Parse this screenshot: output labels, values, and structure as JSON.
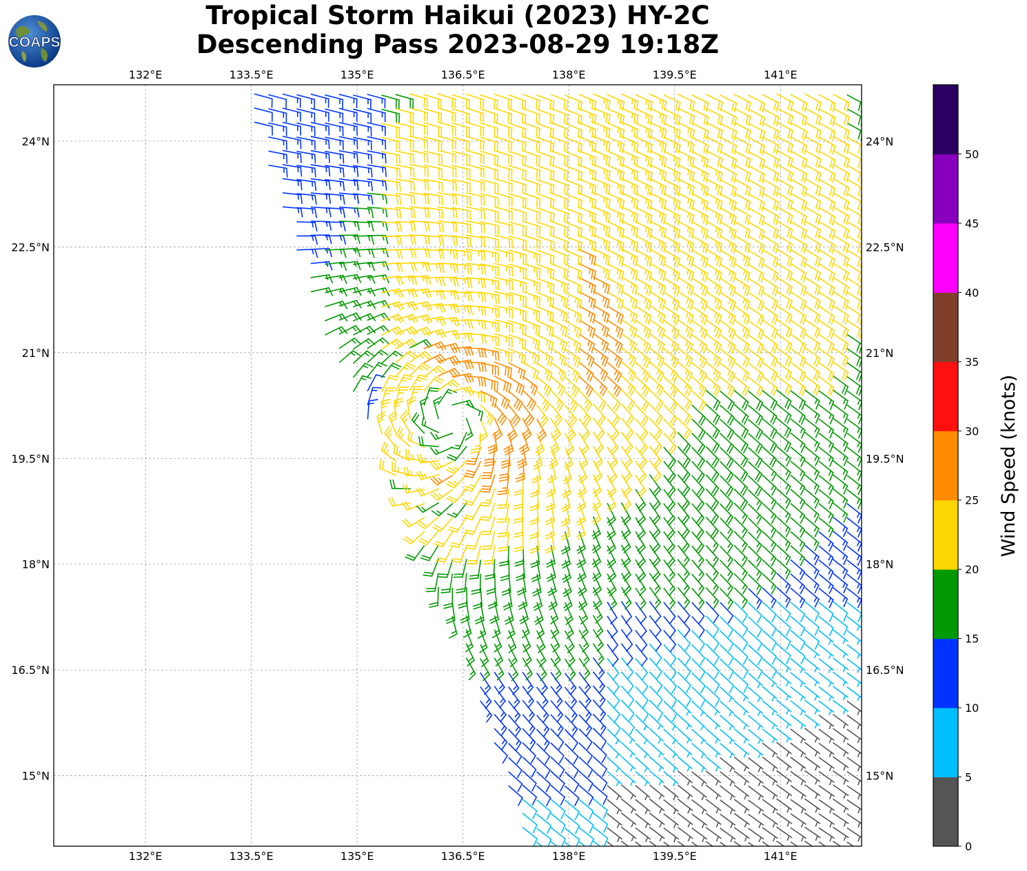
{
  "title": {
    "line1": "Tropical Storm Haikui (2023) HY-2C",
    "line2": "Descending Pass 2023-08-29 19:18Z"
  },
  "logo": {
    "text": "COAPS",
    "icon": "globe-logo-icon"
  },
  "map": {
    "lon_range": [
      130.7,
      142.15
    ],
    "lat_range": [
      14.0,
      24.8
    ],
    "lon_ticks": [
      132.0,
      133.5,
      135.0,
      136.5,
      138.0,
      139.5,
      141.0
    ],
    "lon_tick_labels": [
      "132°E",
      "133.5°E",
      "135°E",
      "136.5°E",
      "138°E",
      "139.5°E",
      "141°E"
    ],
    "lat_ticks": [
      24.0,
      22.5,
      21.0,
      19.5,
      18.0,
      16.5,
      15.0
    ],
    "lat_tick_labels": [
      "24°N",
      "22.5°N",
      "21°N",
      "19.5°N",
      "18°N",
      "16.5°N",
      "15°N"
    ],
    "grid": true,
    "storm_center": {
      "lon": 136.35,
      "lat": 20.05
    },
    "swath_edge": [
      [
        133.3,
        24.8
      ],
      [
        134.5,
        21.2
      ],
      [
        135.4,
        19.6
      ],
      [
        136.2,
        17.5
      ],
      [
        137.4,
        14.0
      ]
    ]
  },
  "colorbar": {
    "label": "Wind Speed (knots)",
    "ticks": [
      "0",
      "5",
      "10",
      "15",
      "20",
      "25",
      "30",
      "35",
      "40",
      "45",
      "50"
    ],
    "bins": [
      {
        "min": 0,
        "max": 5,
        "color": "#555555"
      },
      {
        "min": 5,
        "max": 10,
        "color": "#00bfff"
      },
      {
        "min": 10,
        "max": 15,
        "color": "#0033ff"
      },
      {
        "min": 15,
        "max": 20,
        "color": "#009900"
      },
      {
        "min": 20,
        "max": 25,
        "color": "#ffd700"
      },
      {
        "min": 25,
        "max": 30,
        "color": "#ff8c00"
      },
      {
        "min": 30,
        "max": 35,
        "color": "#ff1010"
      },
      {
        "min": 35,
        "max": 40,
        "color": "#7f3f2a"
      },
      {
        "min": 40,
        "max": 45,
        "color": "#ff00ff"
      },
      {
        "min": 45,
        "max": 50,
        "color": "#8800bb"
      },
      {
        "min": 50,
        "max": 55,
        "color": "#2a0060"
      }
    ]
  }
}
